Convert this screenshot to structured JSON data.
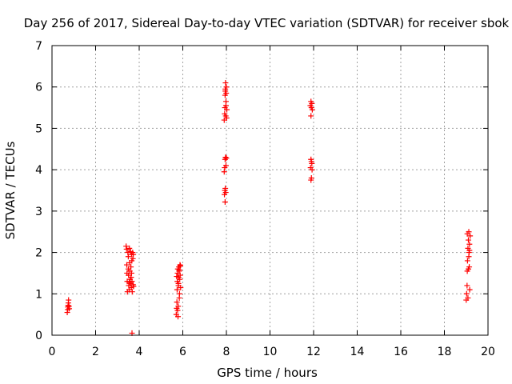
{
  "chart_data": {
    "type": "scatter",
    "title": "Day 256 of 2017, Sidereal Day-to-day VTEC variation (SDTVAR) for receiver sbok",
    "xlabel": "GPS time / hours",
    "ylabel": "SDTVAR / TECUs",
    "xlim": [
      0,
      20
    ],
    "ylim": [
      0,
      7
    ],
    "xticks": [
      0,
      2,
      4,
      6,
      8,
      10,
      12,
      14,
      16,
      18,
      20
    ],
    "yticks": [
      0,
      1,
      2,
      3,
      4,
      5,
      6,
      7
    ],
    "grid": true,
    "marker": "+",
    "marker_color": "#ff0000",
    "points": [
      [
        0.7,
        0.55
      ],
      [
        0.72,
        0.62
      ],
      [
        0.73,
        0.68
      ],
      [
        0.74,
        0.72
      ],
      [
        0.75,
        0.78
      ],
      [
        0.76,
        0.85
      ],
      [
        0.78,
        0.7
      ],
      [
        0.79,
        0.64
      ],
      [
        3.4,
        2.15
      ],
      [
        3.42,
        2.08
      ],
      [
        3.43,
        1.7
      ],
      [
        3.44,
        1.5
      ],
      [
        3.45,
        1.3
      ],
      [
        3.46,
        1.05
      ],
      [
        3.48,
        2.0
      ],
      [
        3.5,
        1.9
      ],
      [
        3.5,
        1.6
      ],
      [
        3.51,
        1.45
      ],
      [
        3.52,
        1.2
      ],
      [
        3.54,
        1.1
      ],
      [
        3.55,
        2.1
      ],
      [
        3.56,
        1.75
      ],
      [
        3.57,
        1.55
      ],
      [
        3.58,
        1.35
      ],
      [
        3.6,
        1.25
      ],
      [
        3.61,
        2.02
      ],
      [
        3.62,
        1.65
      ],
      [
        3.63,
        1.4
      ],
      [
        3.64,
        1.15
      ],
      [
        3.65,
        1.95
      ],
      [
        3.66,
        1.8
      ],
      [
        3.67,
        1.3
      ],
      [
        3.68,
        1.05
      ],
      [
        3.7,
        2.0
      ],
      [
        3.71,
        1.85
      ],
      [
        3.72,
        1.22
      ],
      [
        3.73,
        1.95
      ],
      [
        3.74,
        1.18
      ],
      [
        3.65,
        1.5
      ],
      [
        3.55,
        1.28
      ],
      [
        3.67,
        0.05
      ],
      [
        5.7,
        0.5
      ],
      [
        5.72,
        0.65
      ],
      [
        5.73,
        0.8
      ],
      [
        5.74,
        1.1
      ],
      [
        5.75,
        1.3
      ],
      [
        5.76,
        1.5
      ],
      [
        5.77,
        1.6
      ],
      [
        5.78,
        0.45
      ],
      [
        5.79,
        0.7
      ],
      [
        5.8,
        1.2
      ],
      [
        5.81,
        1.4
      ],
      [
        5.82,
        1.65
      ],
      [
        5.83,
        1.55
      ],
      [
        5.84,
        0.9
      ],
      [
        5.85,
        1.0
      ],
      [
        5.86,
        1.35
      ],
      [
        5.87,
        1.7
      ],
      [
        5.88,
        1.45
      ],
      [
        5.9,
        1.15
      ],
      [
        5.76,
        0.6
      ],
      [
        5.8,
        1.25
      ],
      [
        5.84,
        1.58
      ],
      [
        5.72,
        1.42
      ],
      [
        5.89,
        1.68
      ],
      [
        7.9,
        5.2
      ],
      [
        7.92,
        5.35
      ],
      [
        7.93,
        5.5
      ],
      [
        7.94,
        5.8
      ],
      [
        7.95,
        5.95
      ],
      [
        7.96,
        6.1
      ],
      [
        7.97,
        5.3
      ],
      [
        7.98,
        5.65
      ],
      [
        7.99,
        5.85
      ],
      [
        8.0,
        6.0
      ],
      [
        8.01,
        5.25
      ],
      [
        8.02,
        5.45
      ],
      [
        7.95,
        5.9
      ],
      [
        7.98,
        5.55
      ],
      [
        7.9,
        3.95
      ],
      [
        7.92,
        4.05
      ],
      [
        7.94,
        4.25
      ],
      [
        7.96,
        4.3
      ],
      [
        7.98,
        4.1
      ],
      [
        8.0,
        4.28
      ],
      [
        7.91,
        3.4
      ],
      [
        7.93,
        3.5
      ],
      [
        7.95,
        3.55
      ],
      [
        7.97,
        3.45
      ],
      [
        7.94,
        3.22
      ],
      [
        11.85,
        5.55
      ],
      [
        11.88,
        5.65
      ],
      [
        11.9,
        5.5
      ],
      [
        11.92,
        5.6
      ],
      [
        11.94,
        5.45
      ],
      [
        11.88,
        5.3
      ],
      [
        11.86,
        4.05
      ],
      [
        11.88,
        4.25
      ],
      [
        11.9,
        4.2
      ],
      [
        11.92,
        4.15
      ],
      [
        11.93,
        4.0
      ],
      [
        11.9,
        3.8
      ],
      [
        11.88,
        3.75
      ],
      [
        19.0,
        0.85
      ],
      [
        19.02,
        1.0
      ],
      [
        19.04,
        1.2
      ],
      [
        19.05,
        1.55
      ],
      [
        19.06,
        1.8
      ],
      [
        19.08,
        2.1
      ],
      [
        19.1,
        2.3
      ],
      [
        19.12,
        2.5
      ],
      [
        19.13,
        2.0
      ],
      [
        19.14,
        1.65
      ],
      [
        19.15,
        2.2
      ],
      [
        19.16,
        1.1
      ],
      [
        19.18,
        2.4
      ],
      [
        19.05,
        2.45
      ],
      [
        19.1,
        1.6
      ],
      [
        19.08,
        0.9
      ],
      [
        19.12,
        1.9
      ],
      [
        19.15,
        2.05
      ]
    ]
  }
}
